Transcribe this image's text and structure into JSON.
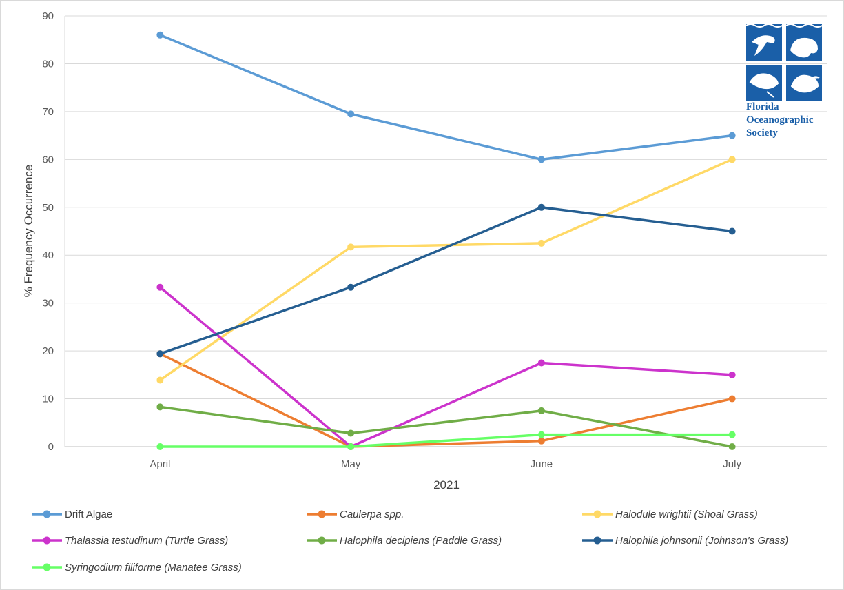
{
  "chart_data": {
    "type": "line",
    "categories": [
      "April",
      "May",
      "June",
      "July"
    ],
    "xlabel": "2021",
    "ylabel": "% Frequency Occurrence",
    "ylim": [
      0,
      90
    ],
    "yticks": [
      "0",
      "10",
      "20",
      "30",
      "40",
      "50",
      "60",
      "70",
      "80",
      "90"
    ],
    "grid": true,
    "legend_position": "bottom",
    "series": [
      {
        "name": "Drift Algae",
        "italic": false,
        "color": "#5b9bd5",
        "values": [
          86,
          69.5,
          60,
          65
        ]
      },
      {
        "name": "Caulerpa spp.",
        "italic": true,
        "color": "#ed7d31",
        "values": [
          19.4,
          0,
          1.2,
          10
        ]
      },
      {
        "name": "Halodule wrightii (Shoal Grass)",
        "italic": true,
        "color": "#ffd966",
        "values": [
          13.9,
          41.7,
          42.5,
          60
        ]
      },
      {
        "name": "Thalassia testudinum (Turtle Grass)",
        "italic": true,
        "color": "#cc33cc",
        "values": [
          33.3,
          0,
          17.5,
          15
        ]
      },
      {
        "name": "Halophila decipiens (Paddle Grass)",
        "italic": true,
        "color": "#70ad47",
        "values": [
          8.3,
          2.8,
          7.5,
          0
        ]
      },
      {
        "name": "Halophila johnsonii (Johnson's Grass)",
        "italic": true,
        "color": "#255e91",
        "values": [
          19.4,
          33.3,
          50,
          45
        ]
      },
      {
        "name": "Syringodium filiforme (Manatee Grass)",
        "italic": true,
        "color": "#66ff66",
        "values": [
          0,
          0,
          2.5,
          2.5
        ]
      }
    ]
  },
  "logo": {
    "lines": [
      "Florida",
      "Oceanographic",
      "Society"
    ],
    "color": "#1a5fa8"
  }
}
